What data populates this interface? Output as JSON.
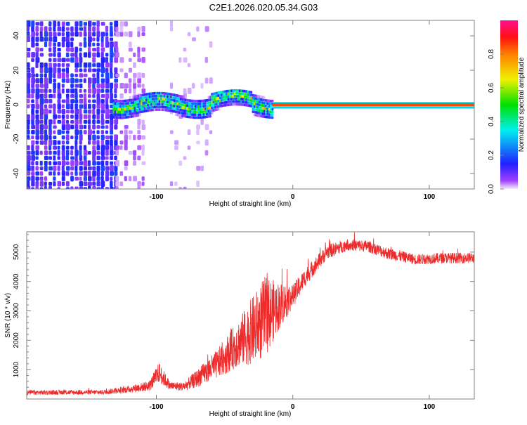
{
  "title": "C2E1.2026.020.05.34.G03",
  "colors": {
    "snr_line": "#ee2a2a",
    "axis": "#808080"
  },
  "chart_data": [
    {
      "type": "heatmap",
      "title": "C2E1.2026.020.05.34.G03",
      "xlabel": "Height of straight line (km)",
      "ylabel": "Frequency (Hz)",
      "xlim": [
        -195,
        133
      ],
      "ylim": [
        -49,
        49
      ],
      "xticks": [
        {
          "v": -100,
          "label": "-100"
        },
        {
          "v": 0,
          "label": "0"
        },
        {
          "v": 100,
          "label": "100"
        }
      ],
      "yticks": [
        {
          "v": -40,
          "label": "-40"
        },
        {
          "v": -20,
          "label": "-20"
        },
        {
          "v": 0,
          "label": "0"
        },
        {
          "v": 20,
          "label": "20"
        },
        {
          "v": 40,
          "label": "40"
        }
      ],
      "regions": [
        {
          "name": "noise-dense",
          "x": [
            -195,
            -130
          ],
          "y": [
            -49,
            49
          ],
          "amplitude": 0.12,
          "density": 0.9
        },
        {
          "name": "noise-sparse",
          "x": [
            -130,
            -110
          ],
          "y": [
            -49,
            49
          ],
          "amplitude": 0.03,
          "density": 0.4
        },
        {
          "name": "noise-faint",
          "x": [
            -90,
            -60
          ],
          "y": [
            -49,
            49
          ],
          "amplitude": 0.02,
          "density": 0.15
        },
        {
          "name": "signal-noisy",
          "x": [
            -132,
            -15
          ],
          "y": [
            -6,
            6
          ],
          "amplitude": 0.3,
          "density": 1
        },
        {
          "name": "signal-clean",
          "x": [
            -15,
            133
          ],
          "y": [
            -1.5,
            1.5
          ],
          "amplitude": 0.95,
          "density": 1
        }
      ],
      "colorbar": {
        "label": "Normalized spectral amplitude",
        "range": [
          0,
          1
        ],
        "ticks": [
          {
            "v": 0,
            "label": "0.0"
          },
          {
            "v": 0.2,
            "label": "0.2"
          },
          {
            "v": 0.4,
            "label": "0.4"
          },
          {
            "v": 0.6,
            "label": "0.6"
          },
          {
            "v": 0.8,
            "label": "0.8"
          }
        ],
        "stops": [
          {
            "v": 0,
            "c": "#f4ecff"
          },
          {
            "v": 0.05,
            "c": "#a040ff"
          },
          {
            "v": 0.15,
            "c": "#2020ff"
          },
          {
            "v": 0.35,
            "c": "#00f0f0"
          },
          {
            "v": 0.5,
            "c": "#00e000"
          },
          {
            "v": 0.65,
            "c": "#f0f000"
          },
          {
            "v": 0.8,
            "c": "#ff8000"
          },
          {
            "v": 0.9,
            "c": "#ff1010"
          },
          {
            "v": 1.0,
            "c": "#ff1090"
          }
        ]
      }
    },
    {
      "type": "line",
      "xlabel": "Height of straight line (km)",
      "ylabel": "SNR (10 * v/v)",
      "xlim": [
        -195,
        133
      ],
      "ylim": [
        0,
        5690
      ],
      "xticks": [
        {
          "v": -100,
          "label": "-100"
        },
        {
          "v": 0,
          "label": "0"
        },
        {
          "v": 100,
          "label": "100"
        }
      ],
      "yticks": [
        {
          "v": 1000,
          "label": "1000"
        },
        {
          "v": 2000,
          "label": "2000"
        },
        {
          "v": 3000,
          "label": "3000"
        },
        {
          "v": 4000,
          "label": "4000"
        },
        {
          "v": 5000,
          "label": "5000"
        }
      ],
      "series": [
        {
          "name": "SNR",
          "envelope": [
            [
              -195,
              220,
              80
            ],
            [
              -140,
              230,
              80
            ],
            [
              -120,
              330,
              120
            ],
            [
              -105,
              450,
              180
            ],
            [
              -98,
              900,
              350
            ],
            [
              -90,
              450,
              150
            ],
            [
              -80,
              420,
              150
            ],
            [
              -70,
              700,
              300
            ],
            [
              -55,
              1200,
              500
            ],
            [
              -40,
              1900,
              800
            ],
            [
              -28,
              2400,
              1200
            ],
            [
              -20,
              2800,
              1400
            ],
            [
              -12,
              3100,
              900
            ],
            [
              0,
              3500,
              400
            ],
            [
              10,
              4200,
              300
            ],
            [
              25,
              5000,
              250
            ],
            [
              40,
              5250,
              200
            ],
            [
              55,
              5200,
              200
            ],
            [
              70,
              4950,
              200
            ],
            [
              90,
              4750,
              180
            ],
            [
              110,
              4800,
              180
            ],
            [
              133,
              4800,
              180
            ]
          ]
        }
      ]
    }
  ]
}
